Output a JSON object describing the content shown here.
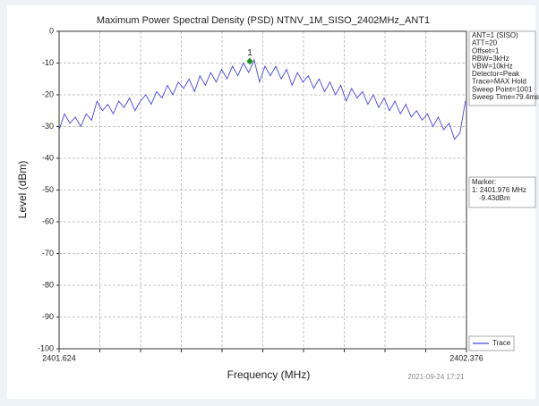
{
  "chart_data": {
    "type": "line",
    "title": "Maximum Power Spectral Density (PSD) NTNV_1M_SISO_2402MHz_ANT1",
    "xlabel": "Frequency (MHz)",
    "ylabel": "Level (dBm)",
    "timestamp": "2021-09-24 17:21",
    "xlim": [
      2401.624,
      2402.376
    ],
    "xticks": [
      2401.624,
      2402.376
    ],
    "ylim": [
      -100,
      0
    ],
    "yticks": [
      0,
      -10,
      -20,
      -30,
      -40,
      -50,
      -60,
      -70,
      -80,
      -90,
      -100
    ],
    "grid": true,
    "legend": "lower right",
    "x": [
      2401.624,
      2401.634,
      2401.644,
      2401.654,
      2401.664,
      2401.674,
      2401.684,
      2401.694,
      2401.704,
      2401.714,
      2401.724,
      2401.734,
      2401.744,
      2401.754,
      2401.764,
      2401.774,
      2401.784,
      2401.794,
      2401.804,
      2401.814,
      2401.824,
      2401.834,
      2401.844,
      2401.854,
      2401.864,
      2401.874,
      2401.884,
      2401.894,
      2401.904,
      2401.914,
      2401.924,
      2401.934,
      2401.944,
      2401.954,
      2401.964,
      2401.974,
      2401.984,
      2401.994,
      2402.004,
      2402.014,
      2402.024,
      2402.034,
      2402.044,
      2402.054,
      2402.064,
      2402.074,
      2402.084,
      2402.094,
      2402.104,
      2402.114,
      2402.124,
      2402.134,
      2402.144,
      2402.154,
      2402.164,
      2402.174,
      2402.184,
      2402.194,
      2402.204,
      2402.214,
      2402.224,
      2402.234,
      2402.244,
      2402.254,
      2402.264,
      2402.274,
      2402.284,
      2402.294,
      2402.304,
      2402.314,
      2402.324,
      2402.334,
      2402.344,
      2402.354,
      2402.364,
      2402.374
    ],
    "series": [
      {
        "name": "Trace",
        "color": "#4646e0",
        "values": [
          -31,
          -26,
          -29,
          -27,
          -30,
          -26,
          -28,
          -22,
          -25,
          -23,
          -26,
          -22,
          -24,
          -21,
          -25,
          -22,
          -20,
          -23,
          -19,
          -21,
          -17,
          -20,
          -16,
          -18,
          -15,
          -19,
          -14,
          -17,
          -13,
          -16,
          -12,
          -15,
          -11,
          -14,
          -10,
          -13,
          -9,
          -16,
          -11,
          -14,
          -11,
          -15,
          -12,
          -17,
          -13,
          -16,
          -14,
          -18,
          -15,
          -19,
          -16,
          -20,
          -17,
          -22,
          -18,
          -21,
          -19,
          -23,
          -20,
          -24,
          -21,
          -25,
          -22,
          -26,
          -23,
          -27,
          -25,
          -28,
          -26,
          -30,
          -27,
          -31,
          -29,
          -34,
          -32,
          -22
        ]
      }
    ],
    "markers": [
      {
        "name": "1",
        "x": 2401.976,
        "y": -9.43,
        "color": "#1e8c1e",
        "x_label": "1: 2401.976 MHz",
        "y_label": "-9.43dBm"
      }
    ],
    "marker_title": "Marker:",
    "info": [
      "ANT=1 (SISO)",
      "ATT=20",
      "Offset=1",
      "RBW=3kHz",
      "VBW=10kHz",
      "Detector=Peak",
      "Trace=MAX Hold",
      "Sweep Point=1001",
      "Sweep Time=79.4ms"
    ]
  }
}
